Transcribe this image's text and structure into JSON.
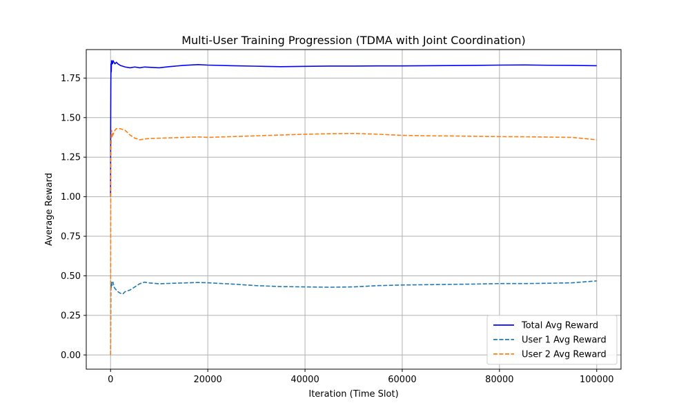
{
  "chart_data": {
    "type": "line",
    "title": "Multi-User Training Progression (TDMA with Joint Coordination)",
    "xlabel": "Iteration (Time Slot)",
    "ylabel": "Average Reward",
    "xlim": [
      -5000,
      105000
    ],
    "ylim": [
      -0.09,
      1.93
    ],
    "x_ticks": [
      0,
      20000,
      40000,
      60000,
      80000,
      100000
    ],
    "x_tick_labels": [
      "0",
      "20000",
      "40000",
      "60000",
      "80000",
      "100000"
    ],
    "y_ticks": [
      0.0,
      0.25,
      0.5,
      0.75,
      1.0,
      1.25,
      1.5,
      1.75
    ],
    "y_tick_labels": [
      "0.00",
      "0.25",
      "0.50",
      "0.75",
      "1.00",
      "1.25",
      "1.50",
      "1.75"
    ],
    "grid": true,
    "legend_position": "lower right",
    "series": [
      {
        "name": "Total Avg Reward",
        "color": "#0000ff",
        "dash": "solid",
        "x": [
          0,
          30,
          60,
          100,
          150,
          200,
          300,
          400,
          500,
          700,
          900,
          1200,
          1500,
          2000,
          2500,
          3000,
          4000,
          5000,
          6000,
          7000,
          8000,
          10000,
          12000,
          15000,
          18000,
          20000,
          25000,
          30000,
          35000,
          40000,
          45000,
          50000,
          55000,
          60000,
          65000,
          70000,
          75000,
          80000,
          85000,
          90000,
          95000,
          100000
        ],
        "y": [
          1.0,
          1.5,
          1.72,
          1.84,
          1.79,
          1.86,
          1.85,
          1.84,
          1.86,
          1.85,
          1.84,
          1.85,
          1.84,
          1.83,
          1.825,
          1.82,
          1.815,
          1.82,
          1.815,
          1.82,
          1.818,
          1.815,
          1.822,
          1.83,
          1.835,
          1.832,
          1.828,
          1.825,
          1.822,
          1.824,
          1.826,
          1.826,
          1.827,
          1.827,
          1.828,
          1.829,
          1.83,
          1.832,
          1.833,
          1.831,
          1.83,
          1.828
        ]
      },
      {
        "name": "User 1 Avg Reward",
        "color": "#1f77b4",
        "dash": "dashed",
        "x": [
          0,
          20,
          50,
          80,
          120,
          200,
          300,
          400,
          500,
          700,
          900,
          1200,
          1500,
          2000,
          2500,
          3000,
          4000,
          5000,
          6000,
          7000,
          8000,
          10000,
          12000,
          15000,
          18000,
          20000,
          25000,
          30000,
          35000,
          40000,
          45000,
          50000,
          55000,
          60000,
          65000,
          70000,
          75000,
          80000,
          85000,
          90000,
          95000,
          100000
        ],
        "y": [
          0.0,
          0.1,
          0.3,
          0.45,
          0.42,
          0.46,
          0.44,
          0.45,
          0.46,
          0.43,
          0.42,
          0.41,
          0.4,
          0.39,
          0.385,
          0.4,
          0.41,
          0.43,
          0.45,
          0.46,
          0.455,
          0.45,
          0.452,
          0.455,
          0.458,
          0.456,
          0.448,
          0.438,
          0.432,
          0.43,
          0.428,
          0.43,
          0.438,
          0.442,
          0.444,
          0.446,
          0.448,
          0.451,
          0.451,
          0.453,
          0.456,
          0.468
        ]
      },
      {
        "name": "User 2 Avg Reward",
        "color": "#ff7f0e",
        "dash": "dashed",
        "x": [
          0,
          20,
          50,
          80,
          120,
          200,
          300,
          400,
          500,
          700,
          900,
          1200,
          1500,
          2000,
          2500,
          3000,
          4000,
          5000,
          6000,
          7000,
          8000,
          10000,
          12000,
          15000,
          18000,
          20000,
          25000,
          30000,
          35000,
          40000,
          45000,
          50000,
          55000,
          60000,
          65000,
          70000,
          75000,
          80000,
          85000,
          90000,
          95000,
          100000
        ],
        "y": [
          0.0,
          0.6,
          1.2,
          1.3,
          1.35,
          1.42,
          1.38,
          1.4,
          1.39,
          1.41,
          1.42,
          1.43,
          1.43,
          1.43,
          1.425,
          1.42,
          1.39,
          1.37,
          1.36,
          1.365,
          1.368,
          1.37,
          1.372,
          1.375,
          1.378,
          1.375,
          1.38,
          1.385,
          1.39,
          1.395,
          1.398,
          1.4,
          1.395,
          1.388,
          1.385,
          1.384,
          1.382,
          1.38,
          1.379,
          1.377,
          1.375,
          1.36
        ]
      }
    ]
  }
}
